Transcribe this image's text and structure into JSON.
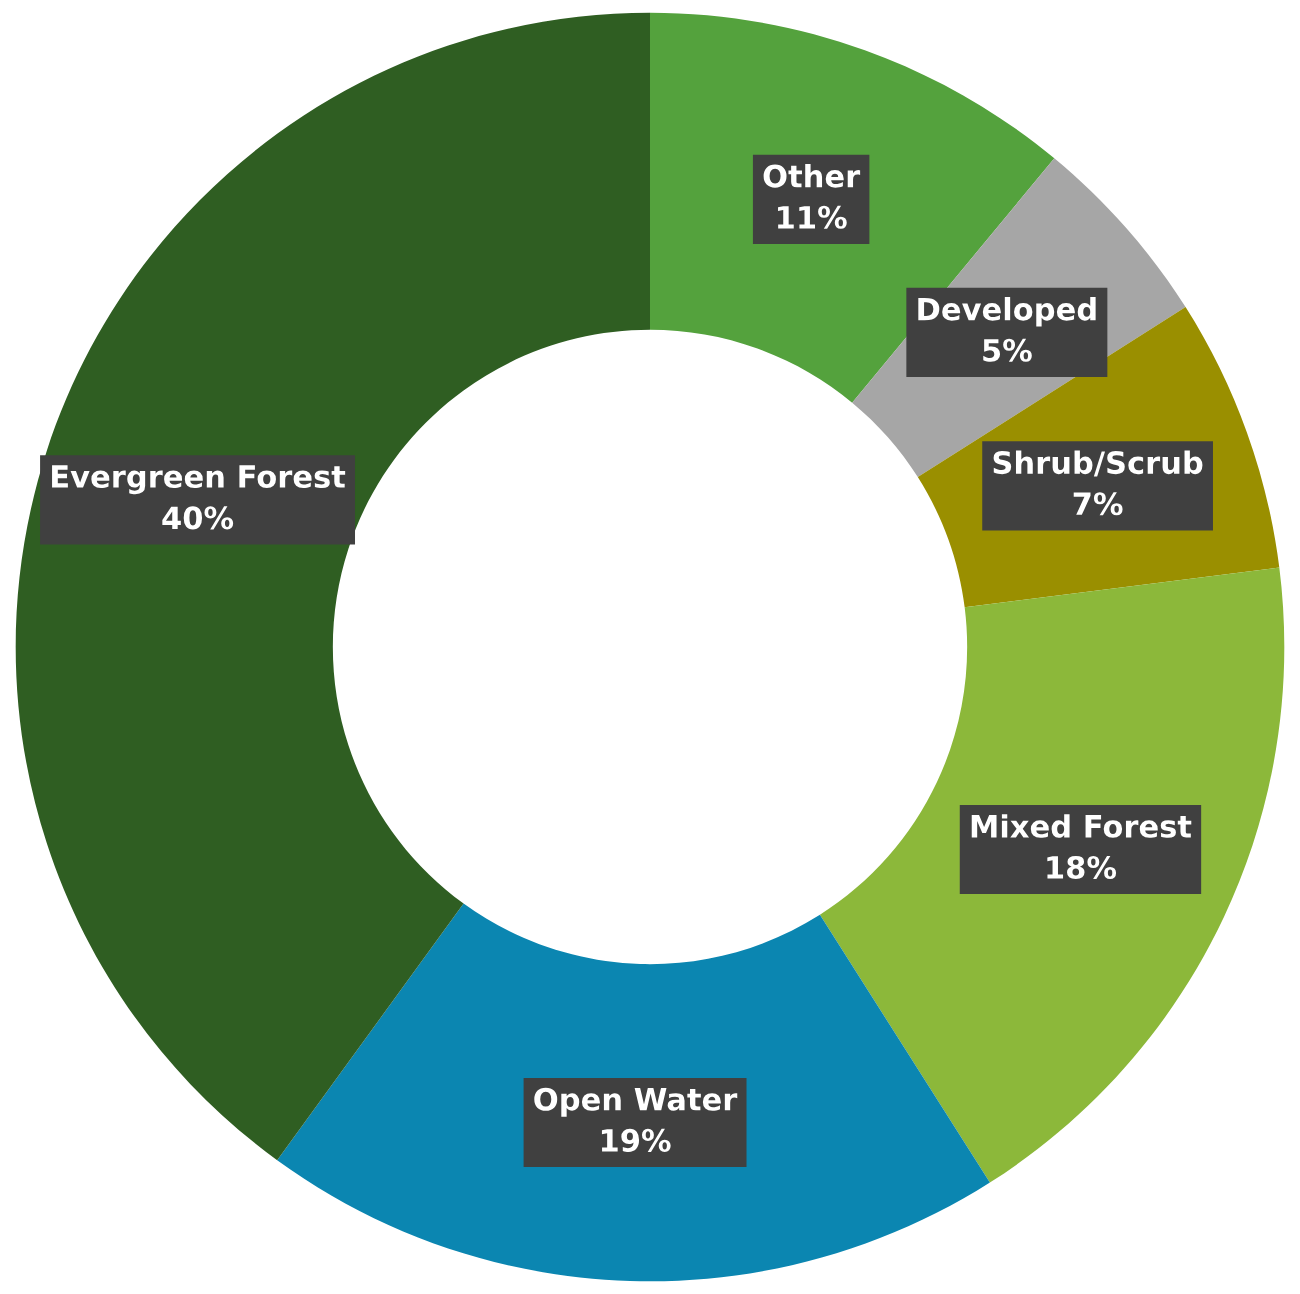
{
  "chart_data": {
    "type": "donut",
    "categories": [
      "Other",
      "Developed",
      "Shrub/Scrub",
      "Mixed Forest",
      "Open Water",
      "Evergreen Forest"
    ],
    "values": [
      11,
      5,
      7,
      18,
      19,
      40
    ],
    "colors": [
      "#54a23d",
      "#a6a6a6",
      "#9a8f00",
      "#8cb83a",
      "#0b86b1",
      "#2f5e22"
    ],
    "value_labels": [
      "11%",
      "5%",
      "7%",
      "18%",
      "19%",
      "40%"
    ],
    "legend": false
  }
}
